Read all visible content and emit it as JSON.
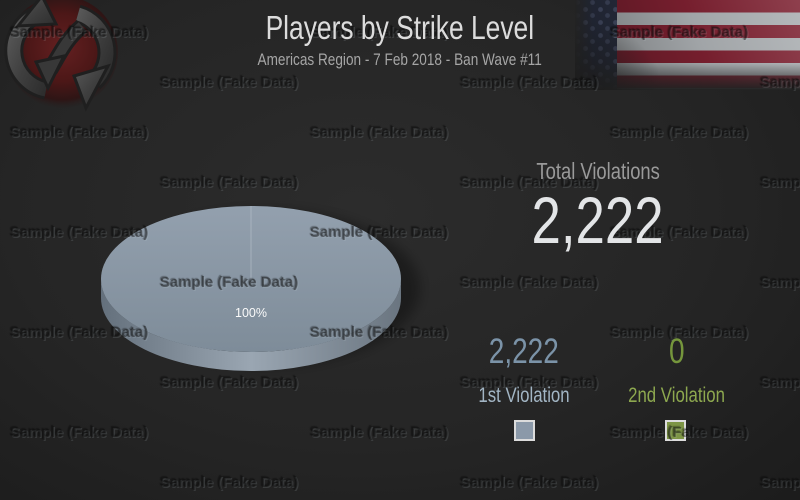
{
  "header": {
    "title": "Players by Strike Level",
    "subtitle": "Americas Region -  7 Feb 2018 - Ban Wave #11"
  },
  "total": {
    "label": "Total Violations",
    "value": "2,222"
  },
  "stats": [
    {
      "value": "2,222",
      "label": "1st Violation",
      "color": "#8b99a9"
    },
    {
      "value": "0",
      "label": "2nd Violation",
      "color": "#7d9545"
    }
  ],
  "watermark": {
    "text": "Sample (Fake Data)"
  },
  "icons": {
    "logo": "circular-arrows-emblem",
    "flag": "us-flag"
  },
  "colors": {
    "background": "#242424",
    "title": "#dcdcdc",
    "muted": "#9a9a9a",
    "accent_blue": "#8b99a9",
    "accent_green": "#7d9545"
  },
  "chart_data": {
    "type": "pie",
    "title": "Players by Strike Level",
    "subtitle": "Americas Region - 7 Feb 2018 - Ban Wave #11",
    "labels": [
      "1st Violation",
      "2nd Violation"
    ],
    "values": [
      2222,
      0
    ],
    "percent_labels": [
      "100%",
      "0%"
    ],
    "colors": [
      "#8b99a9",
      "#7d9545"
    ],
    "total_label": "Total Violations",
    "total": 2222,
    "legend_position": "bottom-right",
    "style": "3d-pie"
  }
}
